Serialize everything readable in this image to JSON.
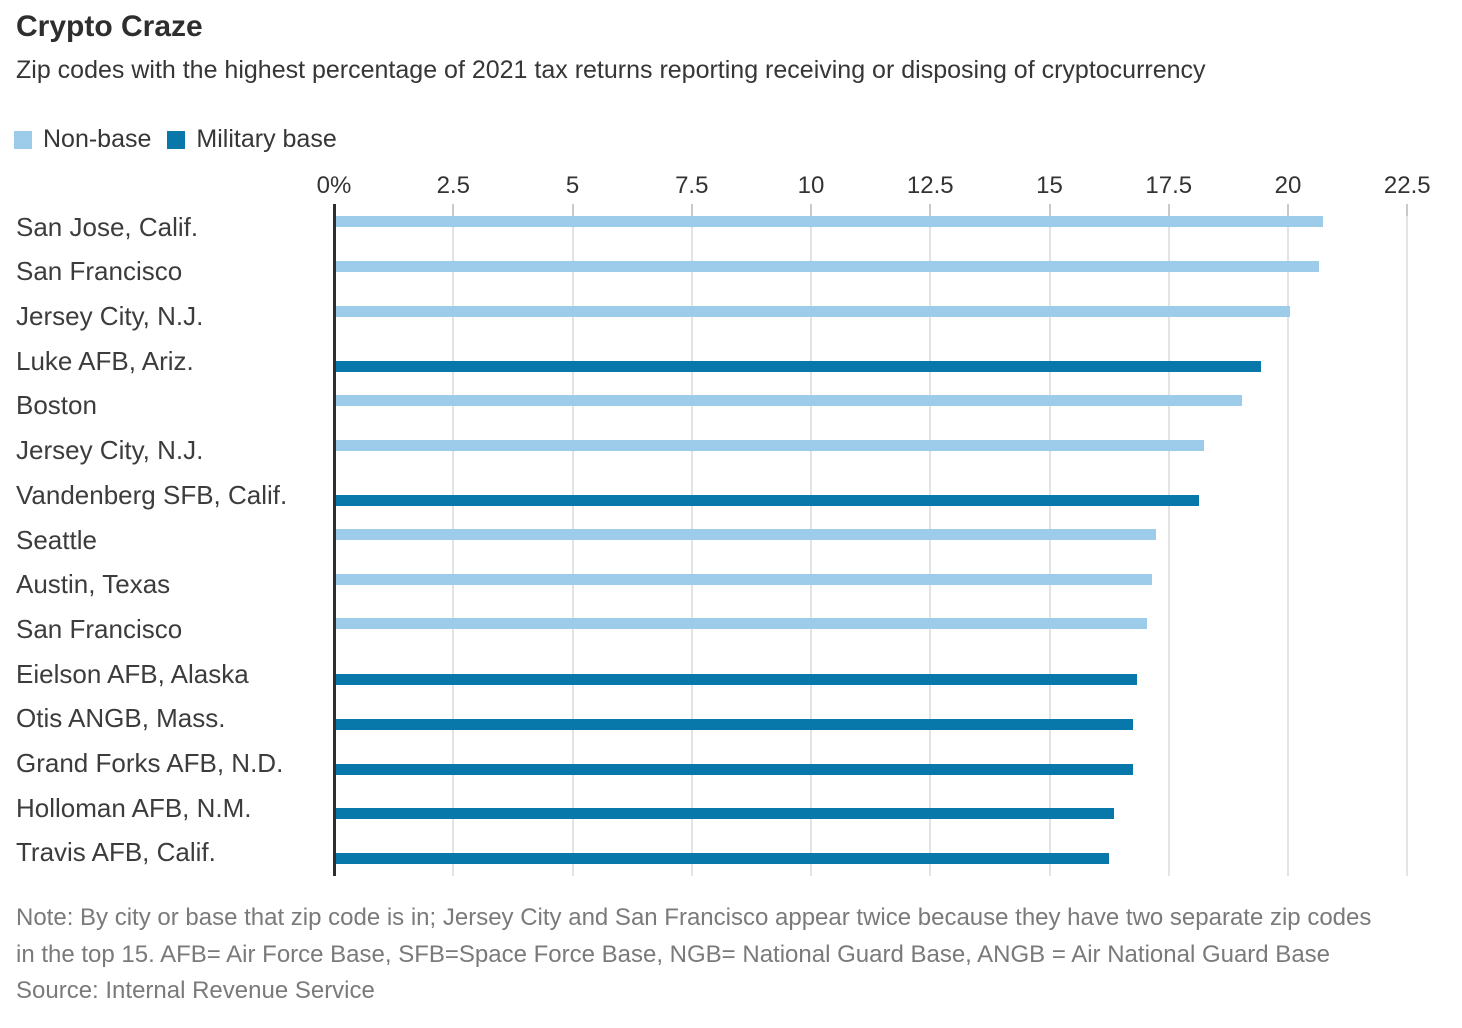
{
  "header": {
    "title": "Crypto Craze",
    "subtitle": "Zip codes with the highest percentage of 2021 tax returns reporting receiving or disposing of cryptocurrency"
  },
  "legend": [
    {
      "label": "Non-base",
      "color": "#9DCBEA"
    },
    {
      "label": "Military base",
      "color": "#0778A9"
    }
  ],
  "chart_data": {
    "type": "bar",
    "orientation": "horizontal",
    "title": "Crypto Craze",
    "xlabel": "",
    "ylabel": "",
    "unit": "%",
    "xlim": [
      0,
      23.6
    ],
    "grid": "vertical",
    "legend_position": "top-left",
    "x_ticks": [
      {
        "value": 0,
        "label": "0%"
      },
      {
        "value": 2.5,
        "label": "2.5"
      },
      {
        "value": 5,
        "label": "5"
      },
      {
        "value": 7.5,
        "label": "7.5"
      },
      {
        "value": 10,
        "label": "10"
      },
      {
        "value": 12.5,
        "label": "12.5"
      },
      {
        "value": 15,
        "label": "15"
      },
      {
        "value": 17.5,
        "label": "17.5"
      },
      {
        "value": 20,
        "label": "20"
      },
      {
        "value": 22.5,
        "label": "22.5"
      }
    ],
    "colors": {
      "Non-base": "#9DCBEA",
      "Military base": "#0778A9"
    },
    "points": [
      {
        "label": "San Jose, Calif.",
        "value": 20.7,
        "series": "Non-base"
      },
      {
        "label": "San Francisco",
        "value": 20.6,
        "series": "Non-base"
      },
      {
        "label": "Jersey City, N.J.",
        "value": 20.0,
        "series": "Non-base"
      },
      {
        "label": "Luke AFB, Ariz.",
        "value": 19.4,
        "series": "Military base"
      },
      {
        "label": "Boston",
        "value": 19.0,
        "series": "Non-base"
      },
      {
        "label": "Jersey City, N.J.",
        "value": 18.2,
        "series": "Non-base"
      },
      {
        "label": "Vandenberg SFB, Calif.",
        "value": 18.1,
        "series": "Military base"
      },
      {
        "label": "Seattle",
        "value": 17.2,
        "series": "Non-base"
      },
      {
        "label": "Austin, Texas",
        "value": 17.1,
        "series": "Non-base"
      },
      {
        "label": "San Francisco",
        "value": 17.0,
        "series": "Non-base"
      },
      {
        "label": "Eielson AFB, Alaska",
        "value": 16.8,
        "series": "Military base"
      },
      {
        "label": "Otis ANGB, Mass.",
        "value": 16.7,
        "series": "Military base"
      },
      {
        "label": "Grand Forks AFB, N.D.",
        "value": 16.7,
        "series": "Military base"
      },
      {
        "label": "Holloman AFB, N.M.",
        "value": 16.3,
        "series": "Military base"
      },
      {
        "label": "Travis AFB, Calif.",
        "value": 16.2,
        "series": "Military base"
      }
    ]
  },
  "footer": {
    "note_lines": [
      "Note: By city or base that zip code is in; Jersey City and San Francisco appear twice because they have two separate zip codes",
      "in the top 15. AFB= Air Force Base, SFB=Space Force Base, NGB= National Guard Base, ANGB = Air National Guard Base"
    ],
    "source": "Source: Internal Revenue Service"
  }
}
